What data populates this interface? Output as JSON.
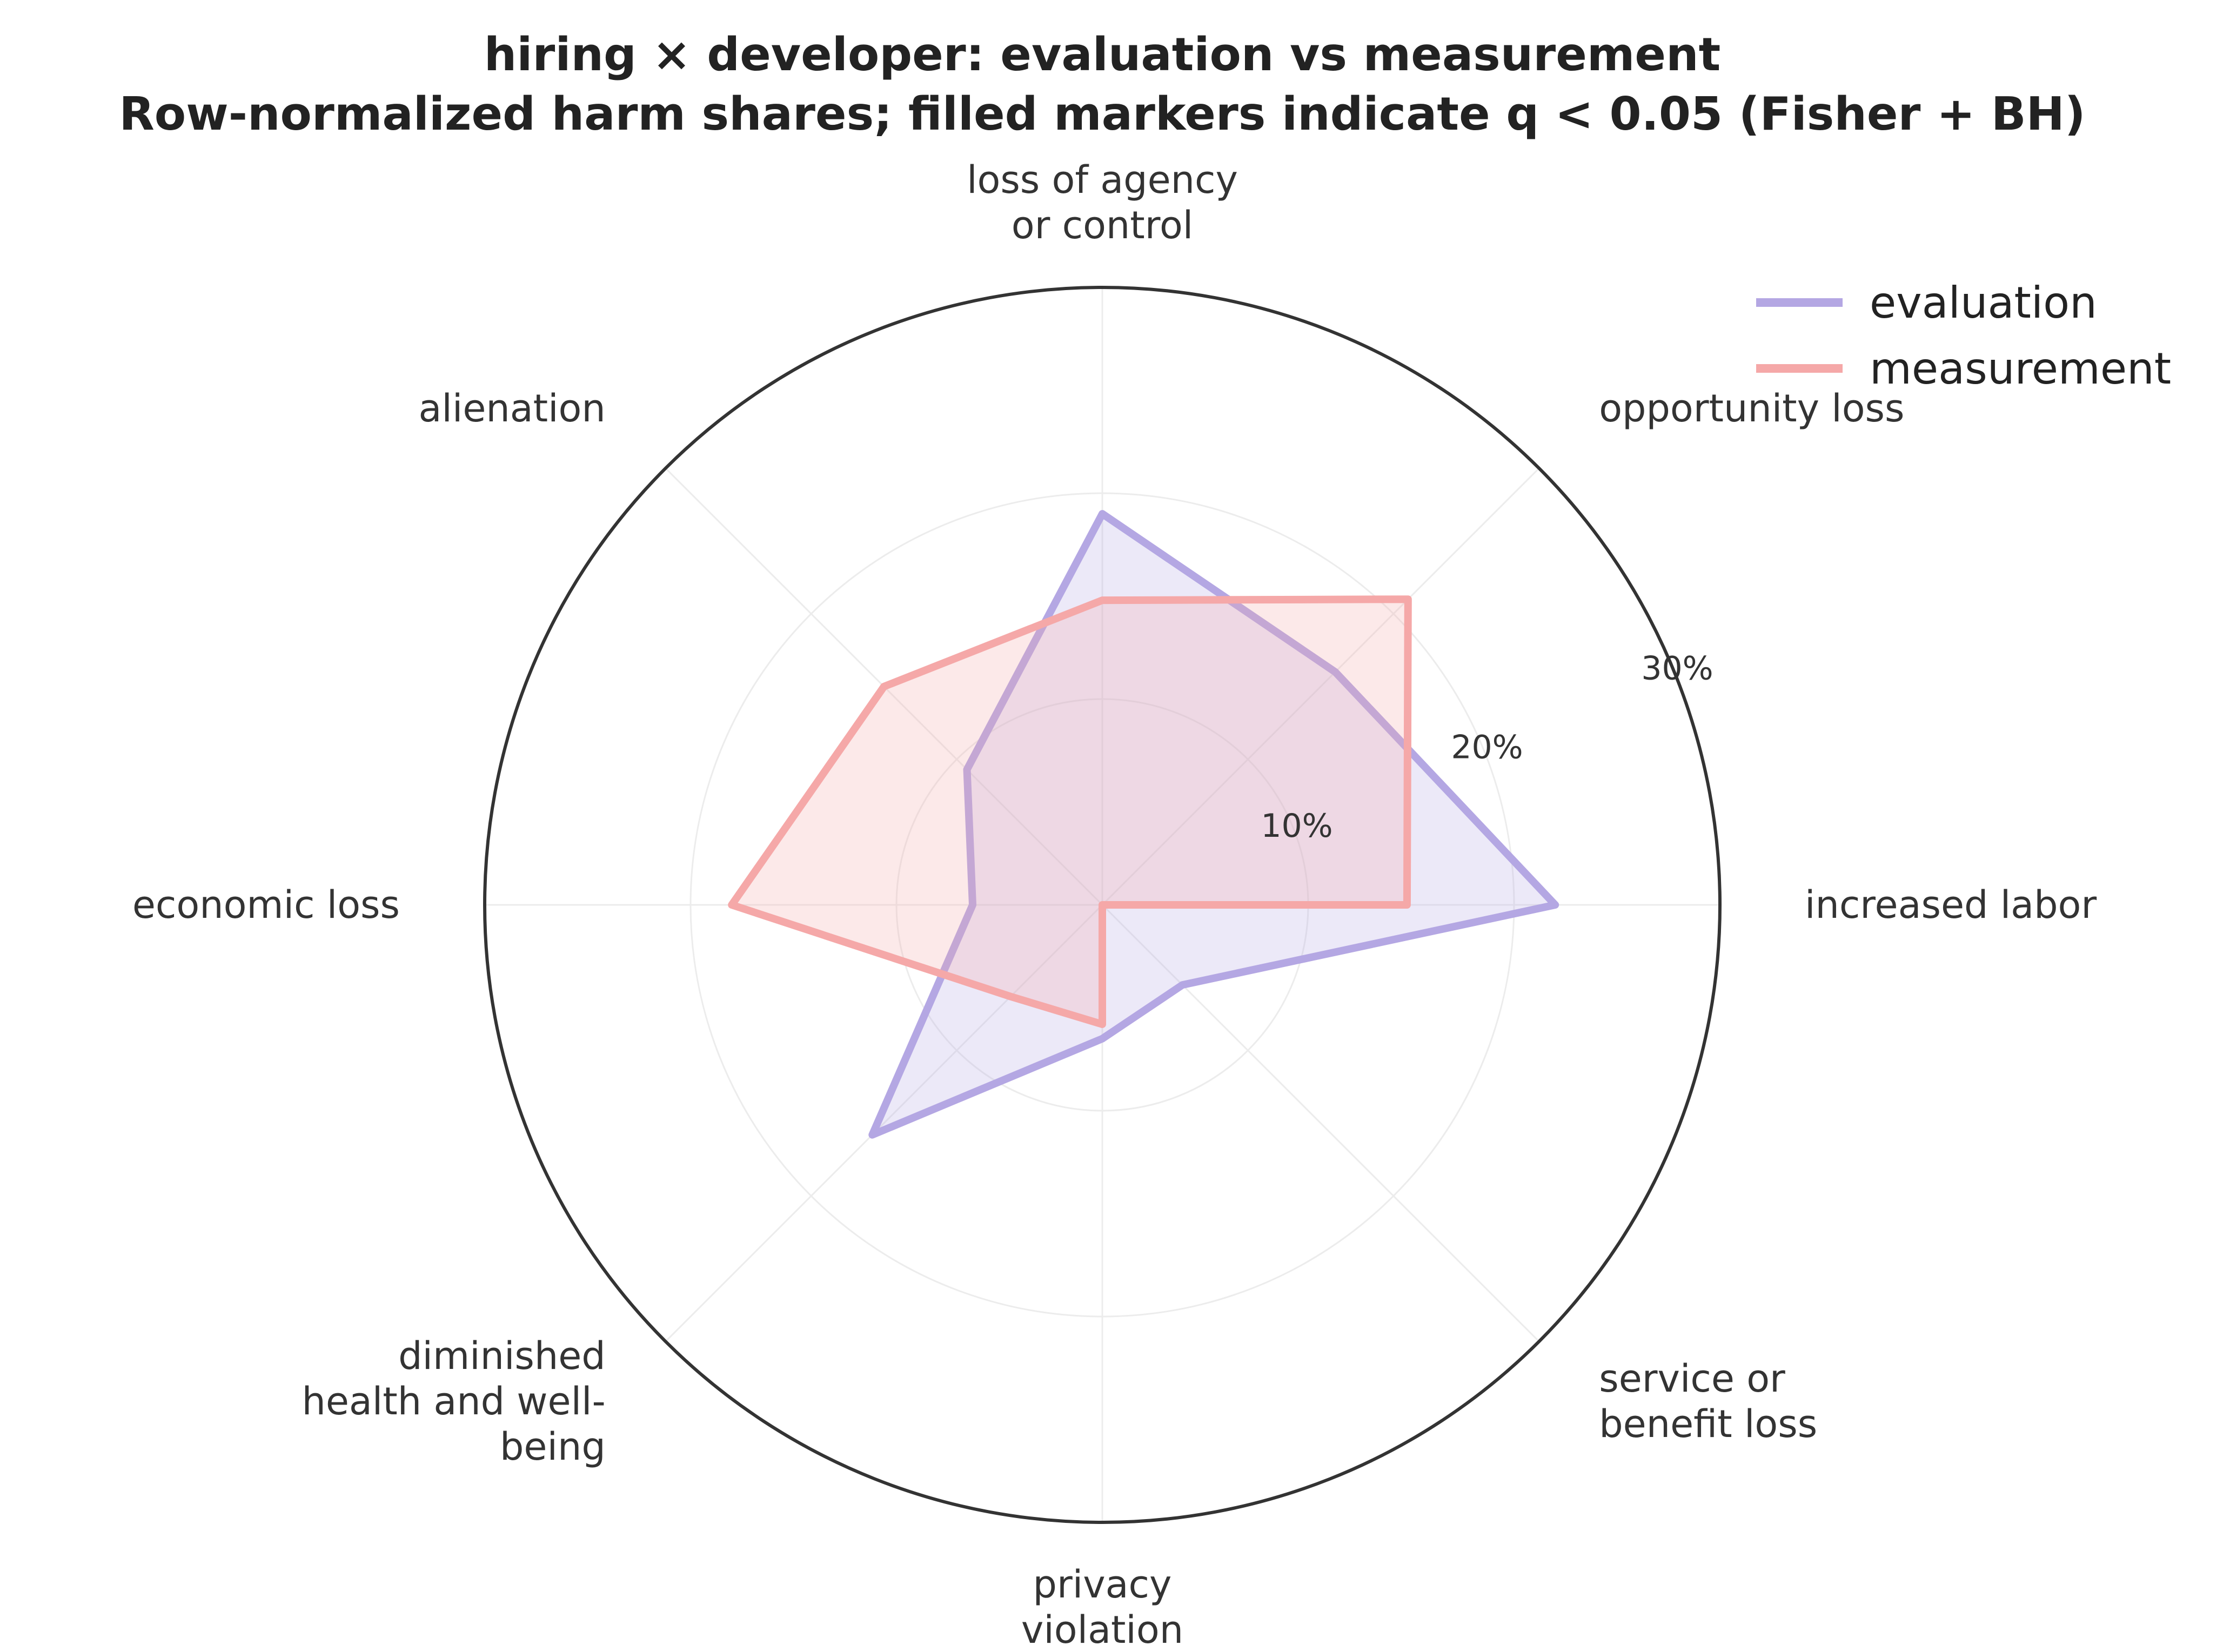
{
  "chart_data": {
    "type": "radar",
    "title": "hiring × developer: evaluation vs measurement",
    "subtitle": "Row-normalized harm shares; filled markers indicate q < 0.05 (Fisher + BH)",
    "categories": [
      "increased labor",
      "opportunity loss",
      "loss of agency or control",
      "alienation",
      "economic loss",
      "diminished health and well-being",
      "privacy violation",
      "service or benefit loss"
    ],
    "category_lines": [
      [
        "increased labor"
      ],
      [
        "opportunity loss"
      ],
      [
        "loss of agency",
        "or control"
      ],
      [
        "alienation"
      ],
      [
        "economic loss"
      ],
      [
        "diminished",
        "health and well-",
        "being"
      ],
      [
        "privacy",
        "violation"
      ],
      [
        "service or",
        "benefit loss"
      ]
    ],
    "radial_ticks": [
      10,
      20,
      30
    ],
    "radial_tick_labels": [
      "10%",
      "20%",
      "30%"
    ],
    "rlim": [
      0,
      30
    ],
    "unit": "%",
    "grid": true,
    "legend_position": "top-right",
    "series": [
      {
        "name": "evaluation",
        "color": "#b4a7e3",
        "values": [
          22.0,
          16.0,
          19.0,
          9.3,
          6.3,
          15.8,
          6.5,
          5.5
        ]
      },
      {
        "name": "measurement",
        "color": "#f5a8a8",
        "values": [
          14.8,
          21.0,
          14.8,
          15.0,
          18.0,
          6.3,
          5.8,
          0.0
        ]
      }
    ]
  }
}
